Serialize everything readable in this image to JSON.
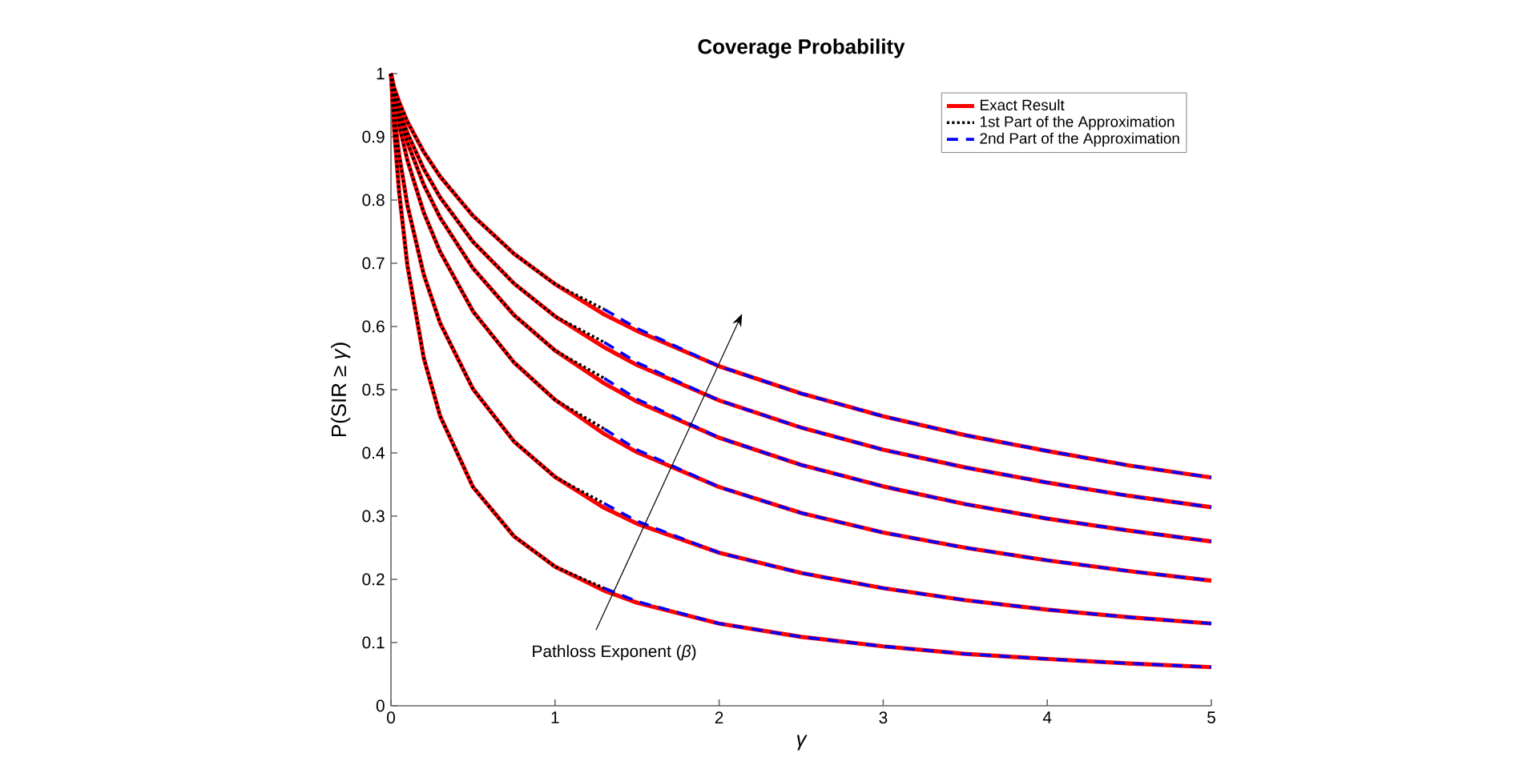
{
  "chart_data": {
    "type": "line",
    "title": "Coverage Probability",
    "xlabel": "γ",
    "ylabel": "P(SIR ≥ *γ*)",
    "annotations": [
      "Pathloss Exponent (*β*)"
    ],
    "xlim": [
      0,
      5
    ],
    "ylim": [
      0,
      1
    ],
    "xticks": [
      0,
      1,
      2,
      3,
      4,
      5
    ],
    "yticks": [
      0,
      0.1,
      0.2,
      0.3,
      0.4,
      0.5,
      0.6,
      0.7,
      0.8,
      0.9,
      1
    ],
    "grid": false,
    "legend": "top right",
    "marker": "none",
    "series": [
      {
        "name": "Exact Result",
        "color": "#ff0000",
        "line_style": "solid",
        "x": [
          0,
          0.02,
          0.05,
          0.1,
          0.2,
          0.3,
          0.5,
          0.75,
          1,
          1.3,
          1.5,
          2,
          2.5,
          3,
          3.5,
          4,
          4.5,
          5
        ],
        "values": [
          1,
          0.977,
          0.955,
          0.924,
          0.876,
          0.837,
          0.775,
          0.715,
          0.667,
          0.619,
          0.593,
          0.537,
          0.494,
          0.458,
          0.428,
          0.403,
          0.38,
          0.361
        ]
      },
      {
        "color": "#ff0000",
        "line_style": "solid",
        "x": [
          0,
          0.02,
          0.05,
          0.1,
          0.2,
          0.3,
          0.5,
          0.75,
          1,
          1.3,
          1.5,
          2,
          2.5,
          3,
          3.5,
          4,
          4.5,
          5
        ],
        "values": [
          1,
          0.971,
          0.943,
          0.906,
          0.849,
          0.804,
          0.734,
          0.668,
          0.616,
          0.567,
          0.539,
          0.483,
          0.44,
          0.405,
          0.377,
          0.353,
          0.332,
          0.314
        ]
      },
      {
        "color": "#ff0000",
        "line_style": "solid",
        "x": [
          0,
          0.02,
          0.05,
          0.1,
          0.2,
          0.3,
          0.5,
          0.75,
          1,
          1.3,
          1.5,
          2,
          2.5,
          3,
          3.5,
          4,
          4.5,
          5
        ],
        "values": [
          1,
          0.968,
          0.935,
          0.891,
          0.824,
          0.772,
          0.692,
          0.618,
          0.562,
          0.51,
          0.481,
          0.424,
          0.381,
          0.347,
          0.319,
          0.296,
          0.277,
          0.26
        ]
      },
      {
        "color": "#ff0000",
        "line_style": "solid",
        "x": [
          0,
          0.02,
          0.05,
          0.1,
          0.2,
          0.3,
          0.5,
          0.75,
          1,
          1.3,
          1.5,
          2,
          2.5,
          3,
          3.5,
          4,
          4.5,
          5
        ],
        "values": [
          1,
          0.96,
          0.918,
          0.863,
          0.78,
          0.718,
          0.624,
          0.543,
          0.484,
          0.43,
          0.401,
          0.346,
          0.305,
          0.274,
          0.25,
          0.23,
          0.213,
          0.198
        ]
      },
      {
        "color": "#ff0000",
        "line_style": "solid",
        "x": [
          0,
          0.02,
          0.05,
          0.1,
          0.2,
          0.3,
          0.5,
          0.75,
          1,
          1.3,
          1.5,
          2,
          2.5,
          3,
          3.5,
          4,
          4.5,
          5
        ],
        "values": [
          1,
          0.935,
          0.871,
          0.792,
          0.682,
          0.605,
          0.501,
          0.418,
          0.362,
          0.313,
          0.288,
          0.242,
          0.21,
          0.186,
          0.167,
          0.152,
          0.14,
          0.13
        ]
      },
      {
        "color": "#ff0000",
        "line_style": "solid",
        "x": [
          0,
          0.02,
          0.05,
          0.1,
          0.2,
          0.3,
          0.5,
          0.75,
          1,
          1.3,
          1.5,
          2,
          2.5,
          3,
          3.5,
          4,
          4.5,
          5
        ],
        "values": [
          1,
          0.909,
          0.812,
          0.697,
          0.55,
          0.458,
          0.346,
          0.268,
          0.22,
          0.182,
          0.163,
          0.13,
          0.109,
          0.094,
          0.082,
          0.074,
          0.067,
          0.061
        ]
      },
      {
        "name": "1st Part of the Approximation",
        "color": "#000000",
        "line_style": "dotted",
        "x": [
          0,
          0.02,
          0.05,
          0.1,
          0.2,
          0.3,
          0.5,
          0.75,
          1,
          1.3
        ],
        "values": [
          1,
          0.977,
          0.955,
          0.924,
          0.876,
          0.837,
          0.775,
          0.715,
          0.667,
          0.627
        ]
      },
      {
        "color": "#000000",
        "line_style": "dotted",
        "x": [
          0,
          0.02,
          0.05,
          0.1,
          0.2,
          0.3,
          0.5,
          0.75,
          1,
          1.3
        ],
        "values": [
          1,
          0.971,
          0.943,
          0.906,
          0.849,
          0.804,
          0.734,
          0.668,
          0.616,
          0.575
        ]
      },
      {
        "color": "#000000",
        "line_style": "dotted",
        "x": [
          0,
          0.02,
          0.05,
          0.1,
          0.2,
          0.3,
          0.5,
          0.75,
          1,
          1.3
        ],
        "values": [
          1,
          0.968,
          0.935,
          0.891,
          0.824,
          0.772,
          0.692,
          0.618,
          0.562,
          0.518
        ]
      },
      {
        "color": "#000000",
        "line_style": "dotted",
        "x": [
          0,
          0.02,
          0.05,
          0.1,
          0.2,
          0.3,
          0.5,
          0.75,
          1,
          1.3
        ],
        "values": [
          1,
          0.96,
          0.918,
          0.863,
          0.78,
          0.718,
          0.624,
          0.543,
          0.484,
          0.438
        ]
      },
      {
        "color": "#000000",
        "line_style": "dotted",
        "x": [
          0,
          0.02,
          0.05,
          0.1,
          0.2,
          0.3,
          0.5,
          0.75,
          1,
          1.3
        ],
        "values": [
          1,
          0.935,
          0.871,
          0.792,
          0.682,
          0.605,
          0.501,
          0.418,
          0.362,
          0.32
        ]
      },
      {
        "color": "#000000",
        "line_style": "dotted",
        "x": [
          0,
          0.02,
          0.05,
          0.1,
          0.2,
          0.3,
          0.5,
          0.75,
          1,
          1.3
        ],
        "values": [
          1,
          0.909,
          0.812,
          0.697,
          0.55,
          0.458,
          0.346,
          0.268,
          0.22,
          0.186
        ]
      },
      {
        "name": "2nd Part of the Approximation",
        "color": "#0000ff",
        "line_style": "dashed",
        "x": [
          1.3,
          1.5,
          2,
          2.5,
          3,
          3.5,
          4,
          4.5,
          5
        ],
        "values": [
          0.627,
          0.597,
          0.537,
          0.494,
          0.458,
          0.428,
          0.403,
          0.38,
          0.361
        ]
      },
      {
        "color": "#0000ff",
        "line_style": "dashed",
        "x": [
          1.3,
          1.5,
          2,
          2.5,
          3,
          3.5,
          4,
          4.5,
          5
        ],
        "values": [
          0.575,
          0.543,
          0.483,
          0.44,
          0.405,
          0.377,
          0.353,
          0.332,
          0.314
        ]
      },
      {
        "color": "#0000ff",
        "line_style": "dashed",
        "x": [
          1.3,
          1.5,
          2,
          2.5,
          3,
          3.5,
          4,
          4.5,
          5
        ],
        "values": [
          0.518,
          0.485,
          0.424,
          0.381,
          0.347,
          0.319,
          0.296,
          0.277,
          0.26
        ]
      },
      {
        "color": "#0000ff",
        "line_style": "dashed",
        "x": [
          1.3,
          1.5,
          2,
          2.5,
          3,
          3.5,
          4,
          4.5,
          5
        ],
        "values": [
          0.438,
          0.405,
          0.346,
          0.305,
          0.274,
          0.25,
          0.23,
          0.213,
          0.198
        ]
      },
      {
        "color": "#0000ff",
        "line_style": "dashed",
        "x": [
          1.3,
          1.5,
          2,
          2.5,
          3,
          3.5,
          4,
          4.5,
          5
        ],
        "values": [
          0.32,
          0.292,
          0.242,
          0.21,
          0.186,
          0.167,
          0.152,
          0.14,
          0.13
        ]
      },
      {
        "color": "#0000ff",
        "line_style": "dashed",
        "x": [
          1.3,
          1.5,
          2,
          2.5,
          3,
          3.5,
          4,
          4.5,
          5
        ],
        "values": [
          0.186,
          0.165,
          0.13,
          0.109,
          0.094,
          0.082,
          0.074,
          0.067,
          0.061
        ]
      }
    ]
  }
}
